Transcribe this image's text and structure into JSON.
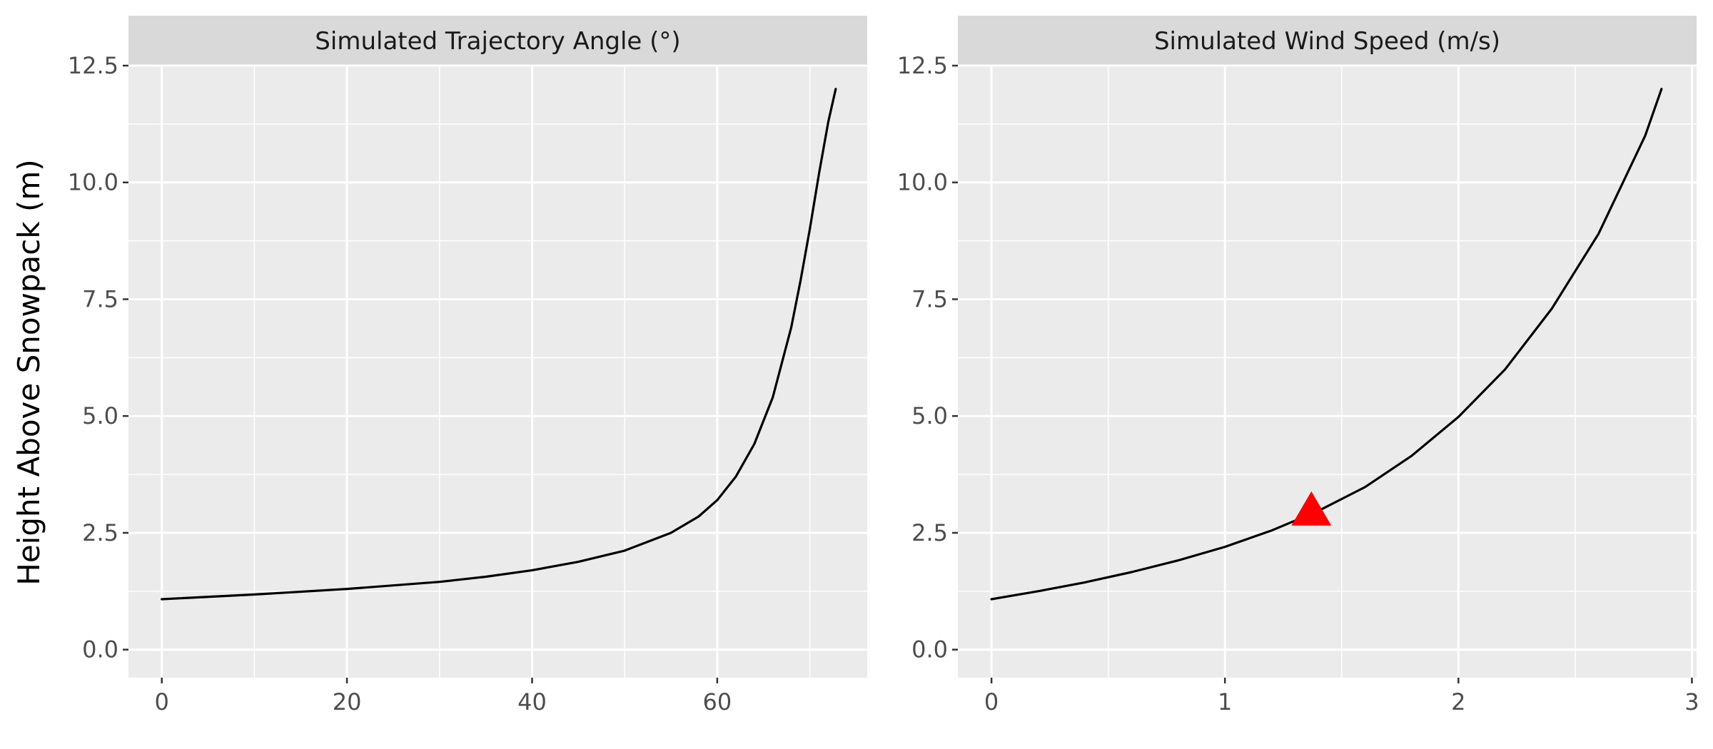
{
  "chart_data": {
    "type": "line",
    "ylabel": "Height Above Snowpack (m)",
    "panels": [
      {
        "strip_title": "Simulated Trajectory Angle (°)",
        "xlim": [
          -3.6,
          76.2
        ],
        "ylim": [
          -0.6,
          12.5
        ],
        "x_ticks": [
          0,
          20,
          40,
          60
        ],
        "x_minor_ticks": [
          10,
          30,
          50,
          70
        ],
        "y_ticks": [
          0.0,
          2.5,
          5.0,
          7.5,
          10.0,
          12.5
        ],
        "y_tick_labels": [
          "0.0",
          "2.5",
          "5.0",
          "7.5",
          "10.0",
          "12.5"
        ],
        "y_minor_ticks": [
          1.25,
          3.75,
          6.25,
          8.75,
          11.25
        ],
        "line_color": "#000000",
        "series": [
          {
            "x": [
              0,
              10,
              20,
              30,
              35,
              40,
              45,
              50,
              55,
              58,
              60,
              62,
              64,
              66,
              68,
              69,
              70,
              71,
              72,
              72.8
            ],
            "y": [
              1.08,
              1.18,
              1.3,
              1.45,
              1.56,
              1.7,
              1.88,
              2.12,
              2.5,
              2.85,
              3.2,
              3.7,
              4.4,
              5.4,
              6.9,
              7.9,
              9.0,
              10.2,
              11.3,
              12.0
            ]
          }
        ]
      },
      {
        "strip_title": "Simulated Wind Speed (m/s)",
        "xlim": [
          -0.144,
          3.02
        ],
        "ylim": [
          -0.6,
          12.5
        ],
        "x_ticks": [
          0,
          1,
          2,
          3
        ],
        "x_minor_ticks": [
          0.5,
          1.5,
          2.5
        ],
        "y_ticks": [
          0.0,
          2.5,
          5.0,
          7.5,
          10.0,
          12.5
        ],
        "y_tick_labels": [
          "0.0",
          "2.5",
          "5.0",
          "7.5",
          "10.0",
          "12.5"
        ],
        "y_minor_ticks": [
          1.25,
          3.75,
          6.25,
          8.75,
          11.25
        ],
        "line_color": "#000000",
        "series": [
          {
            "x": [
              0,
              0.2,
              0.4,
              0.6,
              0.8,
              1.0,
              1.2,
              1.4,
              1.6,
              1.8,
              2.0,
              2.2,
              2.4,
              2.6,
              2.8,
              2.87
            ],
            "y": [
              1.08,
              1.25,
              1.44,
              1.66,
              1.91,
              2.2,
              2.55,
              2.97,
              3.48,
              4.15,
              4.98,
              6.0,
              7.3,
              8.9,
              11.0,
              12.0
            ]
          }
        ],
        "marker": {
          "shape": "triangle",
          "x": 1.37,
          "y": 2.95,
          "color": "#ff0000"
        }
      }
    ]
  },
  "colors": {
    "panel_background": "#ebebeb",
    "strip_background": "#d9d9d9",
    "grid": "#ffffff",
    "tick": "#333333"
  }
}
